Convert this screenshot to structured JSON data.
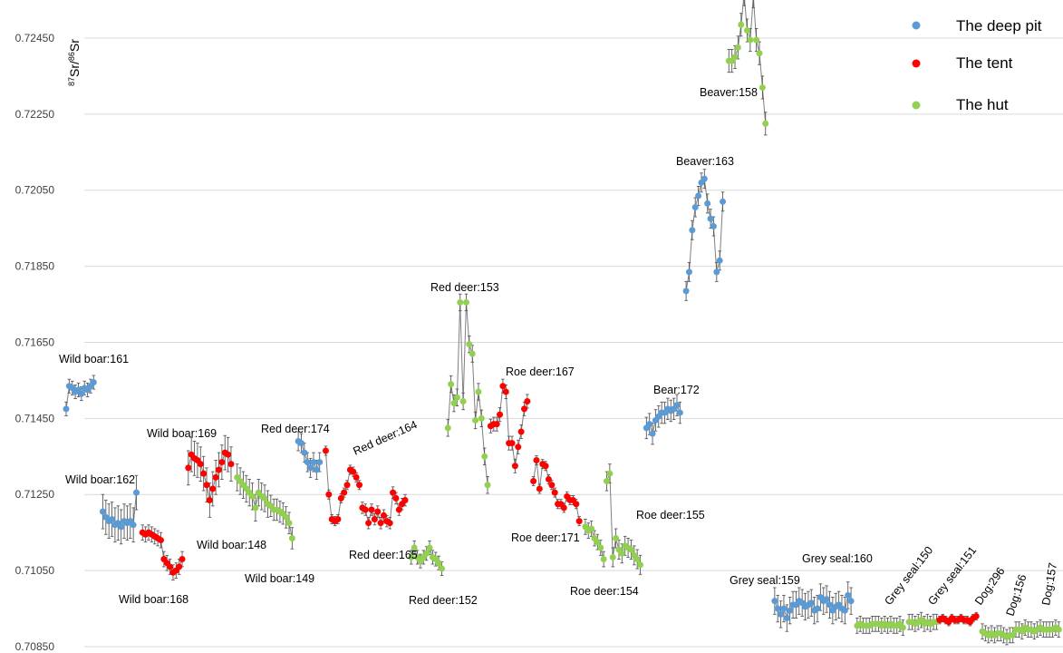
{
  "chart_data": {
    "type": "scatter",
    "ylabel": {
      "sup1": "87",
      "base1": "Sr/",
      "sup2": "86",
      "base2": "Sr"
    },
    "yticks": [
      "0.72450",
      "0.72250",
      "0.72050",
      "0.71850",
      "0.71650",
      "0.71450",
      "0.71250",
      "0.71050",
      "0.70850"
    ],
    "ylim": [
      0.7085,
      0.7255
    ],
    "grid": true,
    "legend_position": "top-right",
    "error_bar_color": "#595959",
    "line_color": "#7f7f7f",
    "series": [
      {
        "name": "The deep pit",
        "color": "#5b9bd5"
      },
      {
        "name": "The tent",
        "color": "#ff0000"
      },
      {
        "name": "The hut",
        "color": "#92d050"
      }
    ],
    "groups": [
      {
        "label": "Wild boar:161",
        "series": 0,
        "x_start": 0,
        "values": [
          0.71475,
          0.71535,
          0.7153,
          0.7152,
          0.71525,
          0.71515,
          0.7153,
          0.71525,
          0.71535,
          0.71545
        ],
        "err": 0.00018
      },
      {
        "label": "Wild boar:162",
        "series": 0,
        "x_start": 12,
        "values": [
          0.71205,
          0.7119,
          0.7118,
          0.71185,
          0.7117,
          0.71175,
          0.71165,
          0.7118,
          0.71175,
          0.7118,
          0.7117,
          0.71255
        ],
        "err": 0.00045
      },
      {
        "label": "Wild boar:168",
        "series": 1,
        "x_start": 25,
        "values": [
          0.7115,
          0.71145,
          0.7115,
          0.71145,
          0.7114,
          0.71135,
          0.7113,
          0.7108,
          0.7107,
          0.7106,
          0.71045,
          0.7105,
          0.7106,
          0.7108
        ],
        "err": 0.0002
      },
      {
        "label": "Wild boar:169",
        "series": 1,
        "x_start": 40,
        "values": [
          0.7132,
          0.71355,
          0.71345,
          0.7134,
          0.7133,
          0.71305,
          0.71275,
          0.71235,
          0.71265,
          0.71295,
          0.71315,
          0.71335,
          0.7136,
          0.71355,
          0.7133
        ],
        "err": 0.00045
      },
      {
        "label": "Wild boar:148",
        "series": 2,
        "x_start": 56,
        "values": [
          0.71295,
          0.71285,
          0.71275,
          0.71265,
          0.71255,
          0.71245,
          0.71215,
          0.71255,
          0.71245,
          0.7124,
          0.71225
        ],
        "err": 0.00035
      },
      {
        "label": "Wild boar:149",
        "series": 2,
        "x_start": 67,
        "values": [
          0.7122,
          0.7121,
          0.7121,
          0.71205,
          0.712,
          0.7119,
          0.71175,
          0.71135
        ],
        "err": 0.00028
      },
      {
        "label": "Red deer:174",
        "series": 0,
        "x_start": 76,
        "values": [
          0.7139,
          0.71385,
          0.7136,
          0.71335,
          0.7132,
          0.71335,
          0.71315,
          0.71335
        ],
        "err": 0.00025
      },
      {
        "label": "Red deer:164",
        "series": 1,
        "x_start": 85,
        "values": [
          0.71365,
          0.7125,
          0.71185,
          0.7118,
          0.71185,
          0.7124,
          0.71255,
          0.71275,
          0.71315,
          0.7131,
          0.71295,
          0.71275
        ],
        "err": 0.00012
      },
      {
        "label": "Red deer:165",
        "series": 1,
        "x_start": 97,
        "values": [
          0.71215,
          0.7121,
          0.71175,
          0.7121,
          0.71185,
          0.71205,
          0.71175,
          0.71195,
          0.7118,
          0.71175,
          0.71255,
          0.7124,
          0.7121,
          0.71225,
          0.71235
        ],
        "err": 0.00015
      },
      {
        "label": "Red deer:152",
        "series": 2,
        "x_start": 113,
        "values": [
          0.71085,
          0.7111,
          0.71085,
          0.71075,
          0.71085,
          0.71095,
          0.7111,
          0.71085,
          0.7108,
          0.7107,
          0.71055
        ],
        "err": 0.00018
      },
      {
        "label": "Red deer:153",
        "series": 2,
        "x_start": 125,
        "values": [
          0.71425,
          0.7154,
          0.7149,
          0.71505,
          0.71755,
          0.71495,
          0.71755,
          0.71645,
          0.7162,
          0.71445,
          0.7152,
          0.7145,
          0.7135,
          0.71275
        ],
        "err": 0.00022
      },
      {
        "label": "Roe deer:167",
        "series": 1,
        "x_start": 139,
        "values": [
          0.7143,
          0.71435,
          0.71435,
          0.7146,
          0.71535,
          0.7152,
          0.71385,
          0.71385,
          0.71325,
          0.71375,
          0.71415,
          0.71475,
          0.71495
        ],
        "err": 0.00018
      },
      {
        "label": "Roe deer:171",
        "series": 1,
        "x_start": 153,
        "values": [
          0.71285,
          0.7134,
          0.71265,
          0.7133,
          0.71325,
          0.7129,
          0.71275,
          0.71255,
          0.71225,
          0.71225,
          0.71215,
          0.71245,
          0.71235,
          0.71235,
          0.71225,
          0.7118
        ],
        "err": 0.00012
      },
      {
        "label": "Roe deer:154",
        "series": 2,
        "x_start": 170,
        "values": [
          0.71165,
          0.71155,
          0.7116,
          0.71135,
          0.71125,
          0.7111,
          0.7108
        ],
        "err": 0.0002
      },
      {
        "label": "Roe deer:155",
        "series": 2,
        "x_start": 177,
        "values": [
          0.71285,
          0.71305,
          0.71085,
          0.71135,
          0.71105,
          0.71095,
          0.71115,
          0.7111,
          0.71105,
          0.7109,
          0.7108,
          0.71065
        ],
        "err": 0.00025
      },
      {
        "label": "Bear:172",
        "series": 0,
        "x_start": 190,
        "values": [
          0.71425,
          0.71435,
          0.7141,
          0.71445,
          0.71455,
          0.71465,
          0.71465,
          0.71475,
          0.7147,
          0.71475,
          0.71485,
          0.71465
        ],
        "err": 0.00028
      },
      {
        "label": "Beaver:163",
        "series": 0,
        "x_start": 203,
        "values": [
          0.71785,
          0.71835,
          0.71945,
          0.72005,
          0.72035,
          0.7207,
          0.7208,
          0.72015,
          0.71975,
          0.71955,
          0.71835,
          0.71865,
          0.7202
        ],
        "err": 0.00025
      },
      {
        "label": "Beaver:158",
        "series": 2,
        "x_start": 217,
        "values": [
          0.7239,
          0.7239,
          0.724,
          0.72425,
          0.72485,
          0.72565,
          0.7247,
          0.72445,
          0.7256,
          0.72445,
          0.7241,
          0.7232,
          0.72225
        ],
        "err": 0.0003
      },
      {
        "label": "Grey seal:159",
        "series": 0,
        "x_start": 232,
        "values": [
          0.7097,
          0.7095,
          0.70935,
          0.7095,
          0.70925,
          0.70945,
          0.7096,
          0.7096,
          0.7097,
          0.70965,
          0.70955,
          0.7096,
          0.70965,
          0.70945,
          0.7095
        ],
        "err": 0.00035
      },
      {
        "label": "Grey seal:160",
        "series": 0,
        "x_start": 247,
        "values": [
          0.7098,
          0.7097,
          0.70975,
          0.7096,
          0.70945,
          0.70955,
          0.7096,
          0.7095,
          0.70945,
          0.70985,
          0.7097
        ],
        "err": 0.00035
      },
      {
        "label": "Grey seal:150",
        "series": 2,
        "x_start": 259,
        "values": [
          0.70905,
          0.7091,
          0.70905,
          0.70905,
          0.70905,
          0.7091,
          0.7091,
          0.7091,
          0.70905,
          0.7091,
          0.70905,
          0.7091,
          0.70905,
          0.70905,
          0.7091,
          0.709
        ],
        "err": 0.0002
      },
      {
        "label": "Grey seal:151",
        "series": 2,
        "x_start": 276,
        "values": [
          0.70915,
          0.70915,
          0.7091,
          0.70915,
          0.7092,
          0.7091,
          0.70915,
          0.7091,
          0.70915,
          0.70915
        ],
        "err": 0.0002
      },
      {
        "label": "Dog:296",
        "series": 1,
        "x_start": 286,
        "values": [
          0.7092,
          0.70925,
          0.7092,
          0.70915,
          0.70925,
          0.7092,
          0.7092,
          0.70925,
          0.7092,
          0.7092,
          0.70915,
          0.70925,
          0.7093
        ],
        "err": 0.0001
      },
      {
        "label": "Dog:156",
        "series": 2,
        "x_start": 300,
        "values": [
          0.7089,
          0.70885,
          0.7088,
          0.70885,
          0.7088,
          0.70885,
          0.70885,
          0.7088,
          0.70875,
          0.7088,
          0.7088
        ],
        "err": 0.0002
      },
      {
        "label": "Dog:157",
        "series": 2,
        "x_start": 311,
        "values": [
          0.70895,
          0.70895,
          0.7089,
          0.709,
          0.70895,
          0.70895,
          0.7089,
          0.70895,
          0.709,
          0.70895,
          0.70895,
          0.70895,
          0.70895,
          0.709,
          0.70895
        ],
        "err": 0.0002
      }
    ]
  }
}
